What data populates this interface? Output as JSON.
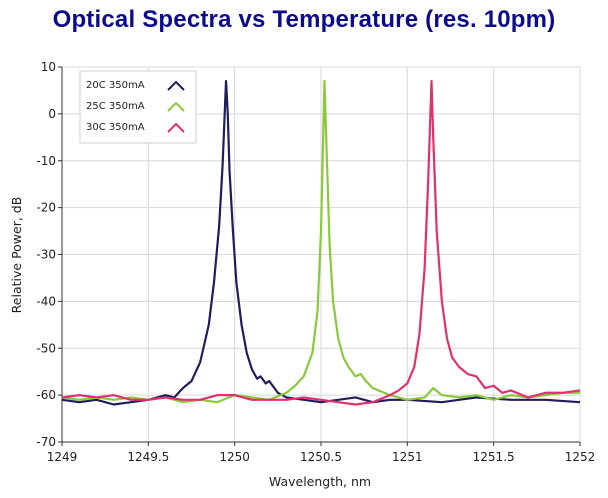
{
  "title": "Optical Spectra vs Temperature (res. 10pm)",
  "chart_data": {
    "type": "line",
    "title": "Optical Spectra vs Temperature (res. 10pm)",
    "xlabel": "Wavelength, nm",
    "ylabel": "Relative Power, dB",
    "xlim": [
      1249,
      1252
    ],
    "ylim": [
      -70,
      10
    ],
    "xticks": [
      1249,
      1249.5,
      1250,
      1250.5,
      1251,
      1251.5,
      1252
    ],
    "xtick_labels": [
      "1249",
      "1249.5",
      "1250",
      "1250.5",
      "1251",
      "1251.5",
      "1252"
    ],
    "yticks": [
      10,
      0,
      -10,
      -20,
      -30,
      -40,
      -50,
      -60,
      -70
    ],
    "ytick_labels": [
      "10",
      "0",
      "-10",
      "-20",
      "-30",
      "-40",
      "-50",
      "-60",
      "-70"
    ],
    "grid": true,
    "legend_position": "top-left",
    "series": [
      {
        "name": "20C 350mA",
        "color": "#1f1d5c",
        "x": [
          1249.0,
          1249.1,
          1249.2,
          1249.3,
          1249.4,
          1249.5,
          1249.6,
          1249.65,
          1249.7,
          1249.75,
          1249.8,
          1249.85,
          1249.88,
          1249.91,
          1249.93,
          1249.95,
          1249.96,
          1249.97,
          1249.99,
          1250.01,
          1250.04,
          1250.07,
          1250.1,
          1250.13,
          1250.15,
          1250.18,
          1250.2,
          1250.25,
          1250.3,
          1250.4,
          1250.5,
          1250.6,
          1250.7,
          1250.8,
          1250.9,
          1251.0,
          1251.2,
          1251.4,
          1251.6,
          1251.8,
          1252.0
        ],
        "values": [
          -61,
          -61.5,
          -61,
          -62,
          -61.5,
          -61,
          -60,
          -60.5,
          -58.5,
          -57,
          -53,
          -45,
          -36,
          -24,
          -11,
          7,
          0,
          -12,
          -25,
          -36,
          -45,
          -51,
          -54.5,
          -56.5,
          -56,
          -57.5,
          -57,
          -59.5,
          -60.5,
          -61,
          -61.5,
          -61,
          -60.5,
          -61.5,
          -61,
          -61,
          -61.5,
          -60.5,
          -61,
          -61,
          -61.5
        ]
      },
      {
        "name": "25C 350mA",
        "color": "#8bc83a",
        "x": [
          1249.0,
          1249.1,
          1249.2,
          1249.3,
          1249.4,
          1249.5,
          1249.6,
          1249.7,
          1249.8,
          1249.9,
          1250.0,
          1250.1,
          1250.2,
          1250.3,
          1250.35,
          1250.4,
          1250.45,
          1250.48,
          1250.5,
          1250.52,
          1250.53,
          1250.55,
          1250.57,
          1250.6,
          1250.63,
          1250.66,
          1250.7,
          1250.73,
          1250.76,
          1250.8,
          1250.9,
          1251.0,
          1251.1,
          1251.15,
          1251.2,
          1251.3,
          1251.4,
          1251.5,
          1251.6,
          1251.7,
          1251.8,
          1251.9,
          1252.0
        ],
        "values": [
          -60.5,
          -61,
          -60.5,
          -61,
          -60.5,
          -61,
          -60.5,
          -61.5,
          -61,
          -61.5,
          -60,
          -60.5,
          -61,
          -59.5,
          -58,
          -56,
          -51,
          -42,
          -25,
          7,
          -5,
          -28,
          -40,
          -48,
          -52,
          -54,
          -56,
          -55.5,
          -57,
          -58.5,
          -60,
          -61,
          -60.5,
          -58.5,
          -60,
          -60.5,
          -60,
          -61,
          -60,
          -60.5,
          -60,
          -59.5,
          -59.5
        ]
      },
      {
        "name": "30C 350mA",
        "color": "#e0306e",
        "x": [
          1249.0,
          1249.1,
          1249.2,
          1249.3,
          1249.4,
          1249.5,
          1249.6,
          1249.7,
          1249.8,
          1249.9,
          1250.0,
          1250.1,
          1250.2,
          1250.3,
          1250.4,
          1250.5,
          1250.6,
          1250.7,
          1250.8,
          1250.9,
          1250.95,
          1251.0,
          1251.04,
          1251.07,
          1251.1,
          1251.12,
          1251.14,
          1251.15,
          1251.17,
          1251.2,
          1251.23,
          1251.26,
          1251.3,
          1251.35,
          1251.4,
          1251.45,
          1251.5,
          1251.55,
          1251.6,
          1251.7,
          1251.8,
          1251.9,
          1252.0
        ],
        "values": [
          -60.5,
          -60,
          -60.5,
          -60,
          -61,
          -61,
          -60.5,
          -61,
          -61,
          -60,
          -60,
          -61,
          -61,
          -61,
          -60.5,
          -61,
          -61.5,
          -62,
          -61.5,
          -60,
          -59,
          -57.5,
          -54,
          -47,
          -33,
          -15,
          7,
          -5,
          -25,
          -40,
          -48,
          -52,
          -54,
          -55.5,
          -56,
          -58.5,
          -58,
          -59.5,
          -59,
          -60.5,
          -59.5,
          -59.5,
          -59
        ]
      }
    ]
  }
}
